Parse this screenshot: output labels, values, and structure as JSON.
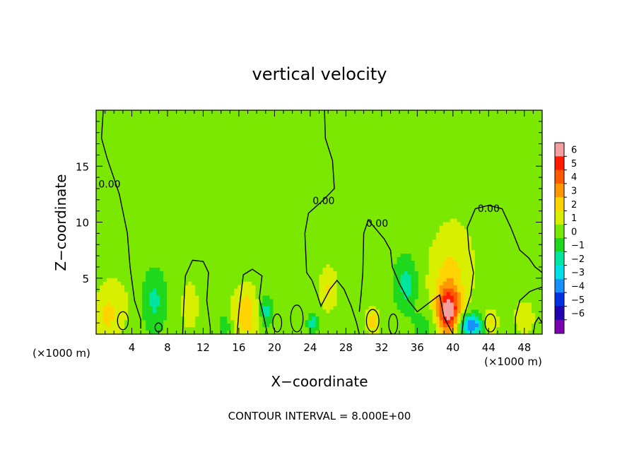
{
  "chart_data": {
    "type": "heatmap",
    "title": "vertical velocity",
    "xlabel": "X−coordinate",
    "ylabel": "Z−coordinate",
    "x_unit_left": "(×1000 m)",
    "x_unit_right": "(×1000 m)",
    "xlim": [
      0,
      50
    ],
    "ylim": [
      0,
      20
    ],
    "x_ticks": [
      4,
      8,
      12,
      16,
      20,
      24,
      28,
      32,
      36,
      40,
      44,
      48
    ],
    "y_ticks": [
      5,
      10,
      15
    ],
    "colorbar": {
      "ticks": [
        "6",
        "5",
        "4",
        "3",
        "2",
        "1",
        "0",
        "−1",
        "−2",
        "−3",
        "−4",
        "−5",
        "−6"
      ],
      "colors": [
        "#f4a0a0",
        "#ff1a00",
        "#ff5a00",
        "#ff9800",
        "#ffd400",
        "#d8f000",
        "#7ae800",
        "#1ed81e",
        "#00e6a0",
        "#00e0e8",
        "#1890ff",
        "#0030e0",
        "#2000b0",
        "#7a00b0"
      ]
    },
    "contour_labels": [
      {
        "text": "0.00",
        "x": 1.5,
        "y": 13.1
      },
      {
        "text": "0.00",
        "x": 25.5,
        "y": 11.6
      },
      {
        "text": "0.00",
        "x": 31.5,
        "y": 9.6
      },
      {
        "text": "0.00",
        "x": 44.0,
        "y": 10.9
      }
    ],
    "footer": "CONTOUR INTERVAL = 8.000E+00",
    "features": [
      {
        "x": 1.2,
        "z": 1.6,
        "w": 1.6,
        "sx": 1.0,
        "sz": 2.0
      },
      {
        "x": 3.0,
        "z": 3.0,
        "w": 0.6,
        "sx": 1.4,
        "sz": 3.0
      },
      {
        "x": 6.5,
        "z": 3.0,
        "w": -1.6,
        "sx": 0.9,
        "sz": 1.8
      },
      {
        "x": 10.5,
        "z": 2.5,
        "w": 0.9,
        "sx": 1.1,
        "sz": 2.5
      },
      {
        "x": 16.8,
        "z": 1.8,
        "w": 2.4,
        "sx": 1.1,
        "sz": 1.8
      },
      {
        "x": 19.0,
        "z": 2.0,
        "w": -2.0,
        "sx": 0.6,
        "sz": 1.0
      },
      {
        "x": 21.0,
        "z": 1.5,
        "w": 0.6,
        "sx": 1.0,
        "sz": 1.5
      },
      {
        "x": 24.3,
        "z": 1.0,
        "w": -2.2,
        "sx": 0.4,
        "sz": 0.5
      },
      {
        "x": 26.0,
        "z": 3.8,
        "w": 1.5,
        "sx": 0.7,
        "sz": 1.3
      },
      {
        "x": 26.5,
        "z": 7.0,
        "w": 0.5,
        "sx": 1.5,
        "sz": 3.0
      },
      {
        "x": 31.0,
        "z": 1.2,
        "w": 2.0,
        "sx": 0.6,
        "sz": 1.0
      },
      {
        "x": 34.8,
        "z": 4.4,
        "w": -1.8,
        "sx": 0.8,
        "sz": 1.5
      },
      {
        "x": 39.5,
        "z": 2.0,
        "w": 5.5,
        "sx": 0.9,
        "sz": 1.5
      },
      {
        "x": 39.5,
        "z": 5.0,
        "w": 1.6,
        "sx": 1.7,
        "sz": 3.0
      },
      {
        "x": 41.0,
        "z": 8.0,
        "w": 0.4,
        "sx": 2.5,
        "sz": 4.0
      },
      {
        "x": 42.0,
        "z": 0.8,
        "w": -4.5,
        "sx": 1.0,
        "sz": 0.7
      },
      {
        "x": 44.2,
        "z": 1.0,
        "w": 2.0,
        "sx": 0.6,
        "sz": 0.8
      },
      {
        "x": 48.0,
        "z": 1.5,
        "w": 1.6,
        "sx": 0.8,
        "sz": 1.1
      },
      {
        "x": 37.0,
        "z": 0.8,
        "w": -0.9,
        "sx": 1.0,
        "sz": 1.0
      },
      {
        "x": 14.5,
        "z": 0.8,
        "w": -1.2,
        "sx": 0.5,
        "sz": 0.6
      },
      {
        "x": 30.0,
        "z": 12.0,
        "w": -0.3,
        "sx": 4.0,
        "sz": 5.0
      },
      {
        "x": 10.0,
        "z": 15.0,
        "w": 0.3,
        "sx": 5.0,
        "sz": 4.0
      }
    ],
    "contours": [
      [
        [
          0.8,
          20
        ],
        [
          0.6,
          17.5
        ],
        [
          1.2,
          15.8
        ],
        [
          2.6,
          12.5
        ],
        [
          3.5,
          9.0
        ],
        [
          3.8,
          6.0
        ],
        [
          4.3,
          3.0
        ],
        [
          5.0,
          1.3
        ],
        [
          5.0,
          0.5
        ]
      ],
      [
        [
          9.7,
          0
        ],
        [
          9.8,
          2.2
        ],
        [
          10.0,
          5.2
        ],
        [
          10.8,
          6.6
        ],
        [
          12.0,
          6.5
        ],
        [
          12.6,
          5.5
        ],
        [
          12.4,
          3.0
        ],
        [
          12.8,
          0.6
        ],
        [
          12.8,
          0
        ]
      ],
      [
        [
          15.8,
          0
        ],
        [
          16.0,
          2.0
        ],
        [
          16.5,
          5.3
        ],
        [
          17.5,
          5.8
        ],
        [
          18.6,
          5.2
        ],
        [
          18.3,
          3.2
        ],
        [
          18.8,
          1.5
        ],
        [
          19.2,
          0
        ]
      ],
      [
        [
          25.6,
          20
        ],
        [
          25.7,
          17.5
        ],
        [
          26.5,
          15.5
        ],
        [
          26.7,
          13.0
        ],
        [
          25.5,
          12.0
        ],
        [
          23.8,
          10.8
        ],
        [
          23.4,
          9.0
        ],
        [
          23.6,
          5.5
        ],
        [
          24.2,
          4.8
        ],
        [
          24.8,
          3.5
        ],
        [
          25.2,
          2.5
        ],
        [
          26.2,
          4.0
        ],
        [
          27.0,
          4.8
        ],
        [
          27.8,
          4.0
        ],
        [
          28.6,
          2.5
        ],
        [
          29.2,
          1.0
        ],
        [
          29.5,
          0
        ]
      ],
      [
        [
          41.0,
          0
        ],
        [
          41.2,
          1.5
        ],
        [
          42.0,
          3.5
        ],
        [
          42.3,
          5.5
        ],
        [
          41.8,
          7.5
        ],
        [
          41.6,
          9.5
        ],
        [
          42.5,
          11.2
        ],
        [
          44.0,
          11.5
        ],
        [
          45.5,
          11.2
        ],
        [
          46.5,
          9.5
        ],
        [
          47.5,
          7.5
        ],
        [
          48.5,
          6.8
        ],
        [
          49.2,
          6.0
        ],
        [
          50.0,
          5.5
        ]
      ],
      [
        [
          40.0,
          0
        ],
        [
          39.0,
          1.5
        ],
        [
          38.5,
          3.5
        ],
        [
          37.0,
          2.6
        ],
        [
          36.0,
          2.0
        ],
        [
          35.0,
          3.0
        ],
        [
          34.0,
          4.5
        ],
        [
          33.2,
          6.0
        ],
        [
          33.0,
          7.5
        ],
        [
          32.3,
          8.5
        ],
        [
          30.5,
          10.2
        ],
        [
          30.0,
          9.0
        ],
        [
          29.9,
          5.5
        ],
        [
          29.7,
          3.5
        ],
        [
          29.5,
          2.0
        ]
      ],
      [
        [
          47.0,
          0
        ],
        [
          47.0,
          1.5
        ],
        [
          47.5,
          3.0
        ],
        [
          48.6,
          3.8
        ],
        [
          49.2,
          4.0
        ],
        [
          50.0,
          4.2
        ]
      ],
      [
        [
          49.0,
          0
        ],
        [
          49.2,
          1.0
        ],
        [
          49.6,
          1.5
        ],
        [
          50.0,
          1.0
        ]
      ]
    ],
    "loops": [
      {
        "x": 3.0,
        "z": 1.2,
        "rx": 0.6,
        "rz": 0.8
      },
      {
        "x": 7.0,
        "z": 0.6,
        "rx": 0.4,
        "rz": 0.4
      },
      {
        "x": 20.3,
        "z": 1.0,
        "rx": 0.5,
        "rz": 0.8
      },
      {
        "x": 22.5,
        "z": 1.4,
        "rx": 0.7,
        "rz": 1.2
      },
      {
        "x": 31.0,
        "z": 1.2,
        "rx": 0.7,
        "rz": 1.0
      },
      {
        "x": 33.3,
        "z": 0.9,
        "rx": 0.5,
        "rz": 0.9
      },
      {
        "x": 44.2,
        "z": 1.0,
        "rx": 0.6,
        "rz": 0.8
      }
    ]
  }
}
